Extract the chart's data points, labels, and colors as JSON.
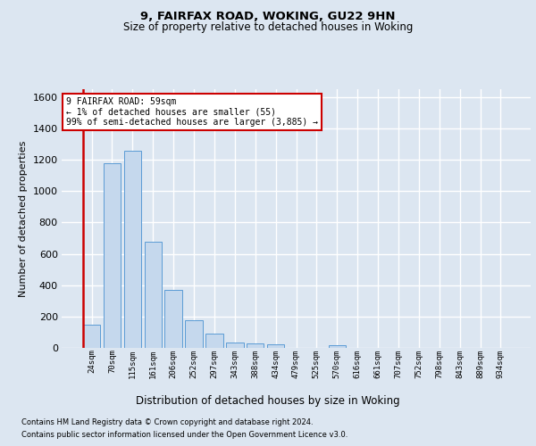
{
  "title1": "9, FAIRFAX ROAD, WOKING, GU22 9HN",
  "title2": "Size of property relative to detached houses in Woking",
  "xlabel": "Distribution of detached houses by size in Woking",
  "ylabel": "Number of detached properties",
  "footer1": "Contains HM Land Registry data © Crown copyright and database right 2024.",
  "footer2": "Contains public sector information licensed under the Open Government Licence v3.0.",
  "annotation_title": "9 FAIRFAX ROAD: 59sqm",
  "annotation_line1": "← 1% of detached houses are smaller (55)",
  "annotation_line2": "99% of semi-detached houses are larger (3,885) →",
  "bar_labels": [
    "24sqm",
    "70sqm",
    "115sqm",
    "161sqm",
    "206sqm",
    "252sqm",
    "297sqm",
    "343sqm",
    "388sqm",
    "434sqm",
    "479sqm",
    "525sqm",
    "570sqm",
    "616sqm",
    "661sqm",
    "707sqm",
    "752sqm",
    "798sqm",
    "843sqm",
    "889sqm",
    "934sqm"
  ],
  "bar_values": [
    150,
    1175,
    1260,
    675,
    370,
    175,
    92,
    35,
    28,
    20,
    0,
    0,
    18,
    0,
    0,
    0,
    0,
    0,
    0,
    0,
    0
  ],
  "bar_color": "#c5d8ed",
  "bar_edge_color": "#5b9bd5",
  "highlight_color": "#cc0000",
  "ylim": [
    0,
    1650
  ],
  "yticks": [
    0,
    200,
    400,
    600,
    800,
    1000,
    1200,
    1400,
    1600
  ],
  "annotation_box_color": "#ffffff",
  "annotation_box_edge": "#cc0000",
  "bg_color": "#dce6f1",
  "plot_bg_color": "#dce6f1",
  "grid_color": "#ffffff",
  "red_line_x": -0.42
}
